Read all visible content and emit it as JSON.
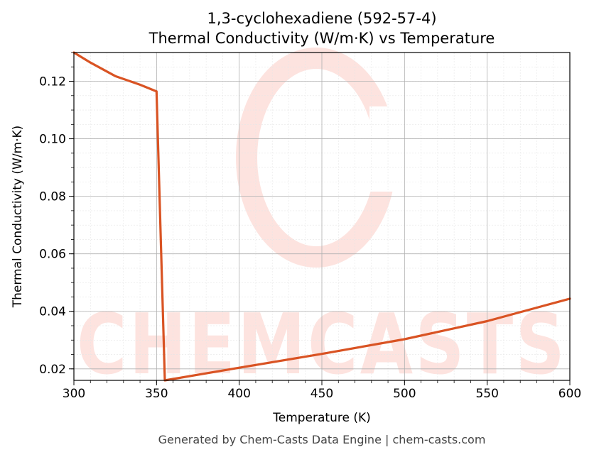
{
  "header": {
    "title_line1": "1,3-cyclohexadiene (592-57-4)",
    "title_line2": "Thermal Conductivity (W/m·K) vs Temperature"
  },
  "footer": {
    "text": "Generated by Chem-Casts Data Engine | chem-casts.com"
  },
  "watermark": {
    "text": "CHEMCASTS",
    "color": "#fde3df"
  },
  "chart_data": {
    "type": "line",
    "title": "1,3-cyclohexadiene (592-57-4) Thermal Conductivity (W/m·K) vs Temperature",
    "xlabel": "Temperature (K)",
    "ylabel": "Thermal Conductivity (W/m·K)",
    "xlim": [
      300,
      600
    ],
    "ylim": [
      0.016,
      0.13
    ],
    "x_ticks": [
      300,
      350,
      400,
      450,
      500,
      550,
      600
    ],
    "x_tick_labels": [
      "300",
      "350",
      "400",
      "450",
      "500",
      "550",
      "600"
    ],
    "y_ticks": [
      0.02,
      0.04,
      0.06,
      0.08,
      0.1,
      0.12
    ],
    "y_tick_labels": [
      "0.02",
      "0.04",
      "0.06",
      "0.08",
      "0.10",
      "0.12"
    ],
    "grid": true,
    "line_color": "#d95323",
    "series": [
      {
        "x": [
          300,
          310,
          325,
          340,
          349,
          350,
          355,
          360,
          400,
          450,
          500,
          550,
          600
        ],
        "y": [
          0.13,
          0.1265,
          0.1218,
          0.1188,
          0.1167,
          0.1165,
          0.016,
          0.0165,
          0.0204,
          0.0252,
          0.0303,
          0.0366,
          0.0444
        ]
      }
    ]
  }
}
